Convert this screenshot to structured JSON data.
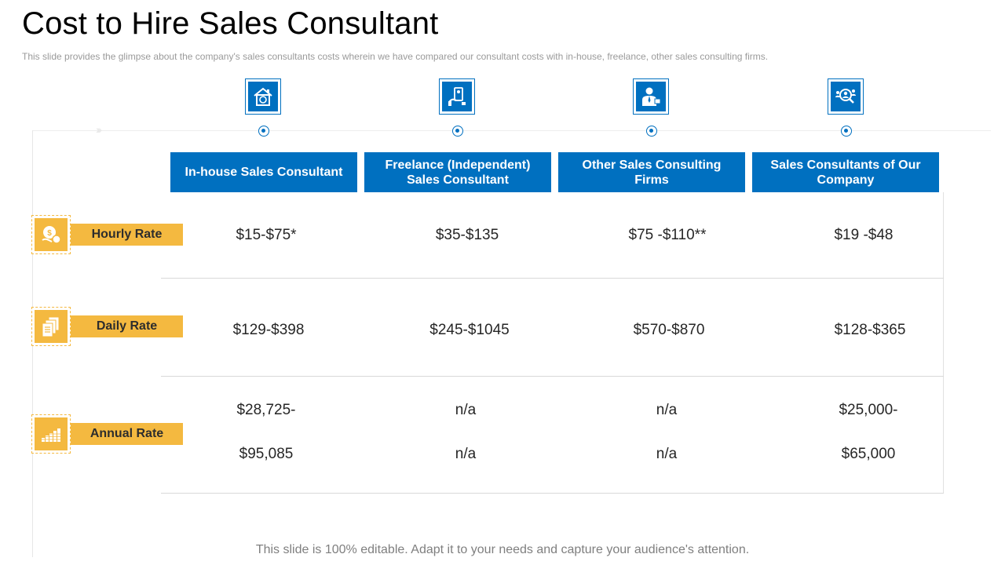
{
  "title": "Cost to Hire Sales Consultant",
  "subtitle": "This slide provides  the glimpse about the company's sales consultants costs wherein  we  have  compared  our consultant costs with in-house,  freelance,  other sales consulting firms.",
  "columns": [
    {
      "label": "In-house Sales Consultant",
      "icon": "house-icon"
    },
    {
      "label": "Freelance (Independent) Sales Consultant",
      "icon": "freelancer-icon"
    },
    {
      "label": "Other Sales Consulting Firms",
      "icon": "businessman-icon"
    },
    {
      "label": "Sales Consultants of Our Company",
      "icon": "team-search-icon"
    }
  ],
  "rows": {
    "hourly": {
      "label": "Hourly Rate",
      "icon": "coins-hand-icon",
      "values": [
        "$15-$75*",
        "$35-$135",
        "$75 -$110**",
        "$19 -$48"
      ]
    },
    "daily": {
      "label": "Daily Rate",
      "icon": "documents-icon",
      "values": [
        "$129-$398",
        "$245-$1045",
        "$570-$870",
        "$128-$365"
      ]
    },
    "annual": {
      "label": "Annual Rate",
      "icon": "coin-stacks-icon",
      "values_line1": [
        "$28,725-",
        "n/a",
        "n/a",
        "$25,000-"
      ],
      "values_line2": [
        "$95,085",
        "n/a",
        "n/a",
        "$65,000"
      ]
    }
  },
  "footer": "This slide is 100% editable. Adapt it to your needs and capture your audience's attention.",
  "colors": {
    "header_blue": "#0070c0",
    "label_gold": "#f4b940"
  }
}
